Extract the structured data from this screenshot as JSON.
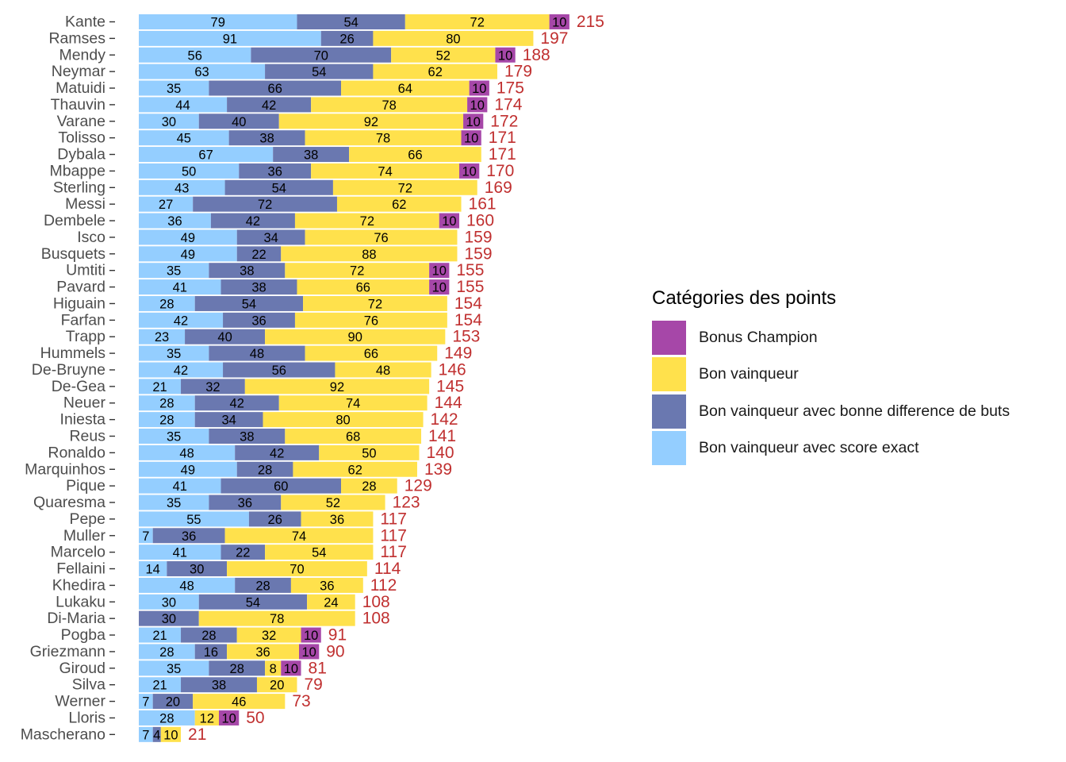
{
  "chart_data": {
    "type": "bar",
    "orientation": "horizontal",
    "stacked": true,
    "categories": [
      "Kante",
      "Ramses",
      "Mendy",
      "Neymar",
      "Matuidi",
      "Thauvin",
      "Varane",
      "Tolisso",
      "Dybala",
      "Mbappe",
      "Sterling",
      "Messi",
      "Dembele",
      "Isco",
      "Busquets",
      "Umtiti",
      "Pavard",
      "Higuain",
      "Farfan",
      "Trapp",
      "Hummels",
      "De-Bruyne",
      "De-Gea",
      "Neuer",
      "Iniesta",
      "Reus",
      "Ronaldo",
      "Marquinhos",
      "Pique",
      "Quaresma",
      "Pepe",
      "Muller",
      "Marcelo",
      "Fellaini",
      "Khedira",
      "Lukaku",
      "Di-Maria",
      "Pogba",
      "Griezmann",
      "Giroud",
      "Silva",
      "Werner",
      "Lloris",
      "Mascherano"
    ],
    "series": [
      {
        "name": "Bon vainqueur avec score exact",
        "color": "#94CEFF",
        "values": [
          79,
          91,
          56,
          63,
          35,
          44,
          30,
          45,
          67,
          50,
          43,
          27,
          36,
          49,
          49,
          35,
          41,
          28,
          42,
          23,
          35,
          42,
          21,
          28,
          28,
          35,
          48,
          49,
          41,
          35,
          55,
          7,
          41,
          14,
          48,
          30,
          0,
          21,
          28,
          35,
          21,
          7,
          28,
          7
        ]
      },
      {
        "name": "Bon vainqueur avec bonne difference de buts",
        "color": "#6A78B0",
        "values": [
          54,
          26,
          70,
          54,
          66,
          42,
          40,
          38,
          38,
          36,
          54,
          72,
          42,
          34,
          22,
          38,
          38,
          54,
          36,
          40,
          48,
          56,
          32,
          42,
          34,
          38,
          42,
          28,
          60,
          36,
          26,
          36,
          22,
          30,
          28,
          54,
          30,
          28,
          16,
          28,
          38,
          20,
          0,
          4
        ]
      },
      {
        "name": "Bon vainqueur",
        "color": "#FFE14C",
        "values": [
          72,
          80,
          52,
          62,
          64,
          78,
          92,
          78,
          66,
          74,
          72,
          62,
          72,
          76,
          88,
          72,
          66,
          72,
          76,
          90,
          66,
          48,
          92,
          74,
          80,
          68,
          50,
          62,
          28,
          52,
          36,
          74,
          54,
          70,
          36,
          24,
          78,
          32,
          36,
          8,
          20,
          46,
          12,
          10
        ]
      },
      {
        "name": "Bonus Champion",
        "color": "#A647A8",
        "values": [
          10,
          0,
          10,
          0,
          10,
          10,
          10,
          10,
          0,
          10,
          0,
          0,
          10,
          0,
          0,
          10,
          10,
          0,
          0,
          0,
          0,
          0,
          0,
          0,
          0,
          0,
          0,
          0,
          0,
          0,
          0,
          0,
          0,
          0,
          0,
          0,
          0,
          10,
          10,
          10,
          0,
          0,
          10,
          0
        ]
      }
    ],
    "totals": [
      215,
      197,
      188,
      179,
      175,
      174,
      172,
      171,
      171,
      170,
      169,
      161,
      160,
      159,
      159,
      155,
      155,
      154,
      154,
      153,
      149,
      146,
      145,
      144,
      142,
      141,
      140,
      139,
      129,
      123,
      117,
      117,
      117,
      114,
      112,
      108,
      108,
      91,
      90,
      81,
      79,
      73,
      50,
      21
    ],
    "total_label_color": "#C03030",
    "xlim": [
      0,
      240
    ],
    "grid": false,
    "legend_position": "right"
  },
  "legend": {
    "title": "Catégories des points",
    "items": [
      {
        "label": "Bonus Champion",
        "color": "#A647A8"
      },
      {
        "label": "Bon vainqueur",
        "color": "#FFE14C"
      },
      {
        "label": "Bon vainqueur avec bonne difference de buts",
        "color": "#6A78B0"
      },
      {
        "label": "Bon vainqueur avec score exact",
        "color": "#94CEFF"
      }
    ]
  }
}
